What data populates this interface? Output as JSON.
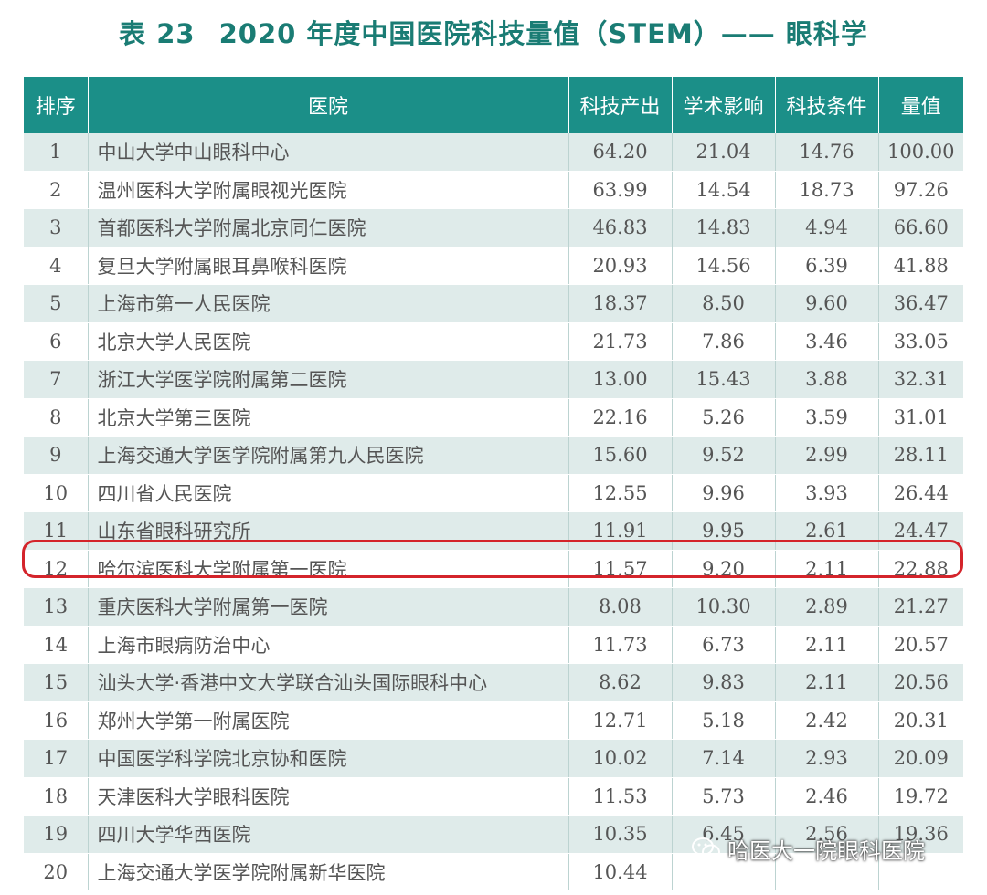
{
  "title": {
    "number": "表 23",
    "text": "2020 年度中国医院科技量值（STEM）—— 眼科学"
  },
  "table": {
    "headers": [
      "排序",
      "医院",
      "科技产出",
      "学术影响",
      "科技条件",
      "量值"
    ],
    "rows": [
      [
        "1",
        "中山大学中山眼科中心",
        "64.20",
        "21.04",
        "14.76",
        "100.00"
      ],
      [
        "2",
        "温州医科大学附属眼视光医院",
        "63.99",
        "14.54",
        "18.73",
        "97.26"
      ],
      [
        "3",
        "首都医科大学附属北京同仁医院",
        "46.83",
        "14.83",
        "4.94",
        "66.60"
      ],
      [
        "4",
        "复旦大学附属眼耳鼻喉科医院",
        "20.93",
        "14.56",
        "6.39",
        "41.88"
      ],
      [
        "5",
        "上海市第一人民医院",
        "18.37",
        "8.50",
        "9.60",
        "36.47"
      ],
      [
        "6",
        "北京大学人民医院",
        "21.73",
        "7.86",
        "3.46",
        "33.05"
      ],
      [
        "7",
        "浙江大学医学院附属第二医院",
        "13.00",
        "15.43",
        "3.88",
        "32.31"
      ],
      [
        "8",
        "北京大学第三医院",
        "22.16",
        "5.26",
        "3.59",
        "31.01"
      ],
      [
        "9",
        "上海交通大学医学院附属第九人民医院",
        "15.60",
        "9.52",
        "2.99",
        "28.11"
      ],
      [
        "10",
        "四川省人民医院",
        "12.55",
        "9.96",
        "3.93",
        "26.44"
      ],
      [
        "11",
        "山东省眼科研究所",
        "11.91",
        "9.95",
        "2.61",
        "24.47"
      ],
      [
        "12",
        "哈尔滨医科大学附属第一医院",
        "11.57",
        "9.20",
        "2.11",
        "22.88"
      ],
      [
        "13",
        "重庆医科大学附属第一医院",
        "8.08",
        "10.30",
        "2.89",
        "21.27"
      ],
      [
        "14",
        "上海市眼病防治中心",
        "11.73",
        "6.73",
        "2.11",
        "20.57"
      ],
      [
        "15",
        "汕头大学·香港中文大学联合汕头国际眼科中心",
        "8.62",
        "9.83",
        "2.11",
        "20.56"
      ],
      [
        "16",
        "郑州大学第一附属医院",
        "12.71",
        "5.18",
        "2.42",
        "20.31"
      ],
      [
        "17",
        "中国医学科学院北京协和医院",
        "10.02",
        "7.14",
        "2.93",
        "20.09"
      ],
      [
        "18",
        "天津医科大学眼科医院",
        "11.53",
        "5.73",
        "2.46",
        "19.72"
      ],
      [
        "19",
        "四川大学华西医院",
        "10.35",
        "6.45",
        "2.56",
        "19.36"
      ],
      [
        "20",
        "上海交通大学医学院附属新华医院",
        "10.44",
        "",
        "",
        ""
      ]
    ]
  },
  "highlight_rank": "12",
  "watermark": {
    "text": "哈医大一院眼科医院",
    "icon": "wechat-icon"
  },
  "colors": {
    "title": "#1a7c74",
    "header_bg": "#1b8f88",
    "stripe": "#dfebea",
    "highlight": "#d4242b"
  }
}
